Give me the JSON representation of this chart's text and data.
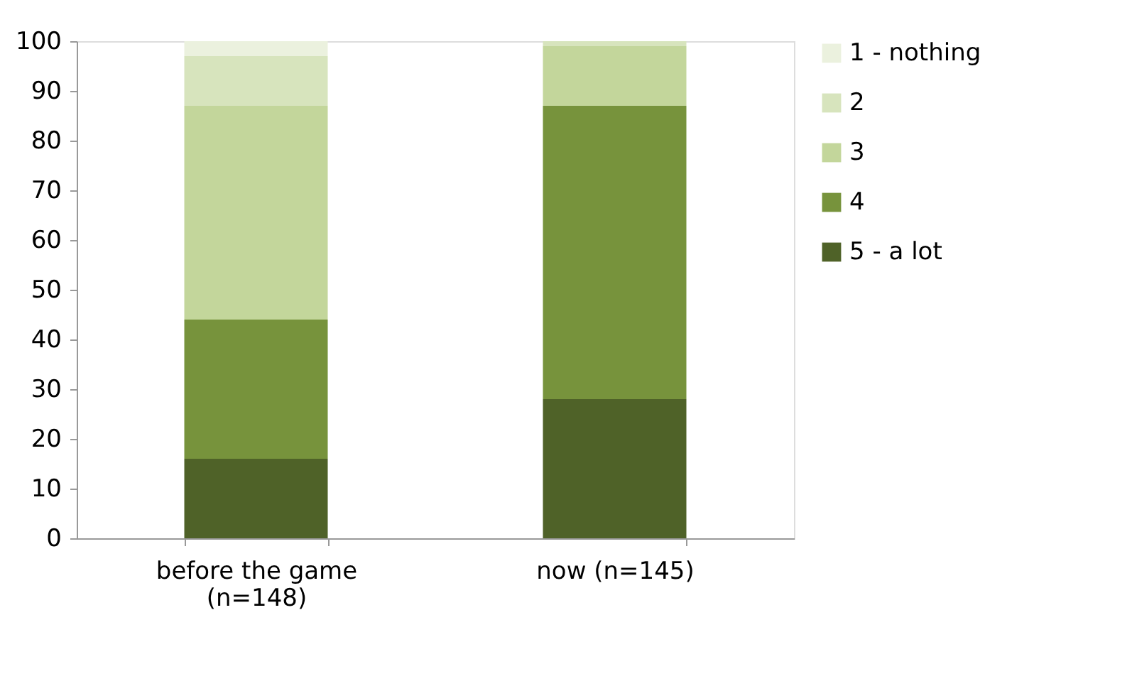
{
  "chart_data": {
    "type": "bar",
    "stacked": true,
    "categories": [
      "before the game (n=148)",
      "now (n=145)"
    ],
    "series": [
      {
        "name": "5 - a lot",
        "color": "#4f6228",
        "values": [
          16,
          28
        ]
      },
      {
        "name": "4",
        "color": "#77933c",
        "values": [
          28,
          59
        ]
      },
      {
        "name": "3",
        "color": "#c3d69b",
        "values": [
          43,
          12
        ]
      },
      {
        "name": "2",
        "color": "#d7e4bd",
        "values": [
          10,
          1
        ]
      },
      {
        "name": "1 - nothing",
        "color": "#ebf1de",
        "values": [
          3,
          0
        ]
      }
    ],
    "ylim": [
      0,
      100
    ],
    "yticks": [
      0,
      10,
      20,
      30,
      40,
      50,
      60,
      70,
      80,
      90,
      100
    ],
    "grid": false,
    "legend": "right"
  }
}
